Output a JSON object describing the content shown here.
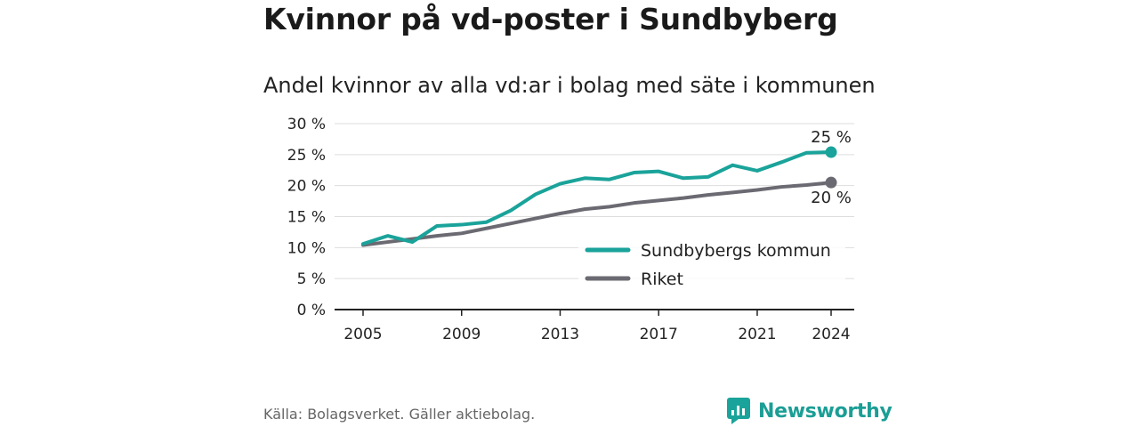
{
  "title": "Kvinnor på vd-poster i Sundbyberg",
  "subtitle": "Andel kvinnor av alla vd:ar i bolag med säte i kommunen",
  "source": "Källa: Bolagsverket. Gäller aktiebolag.",
  "brand": "Newsworthy",
  "colors": {
    "sundbyberg": "#1aa39a",
    "riket": "#6b6a72",
    "grid": "#dddddd",
    "axis": "#222222"
  },
  "chart_data": {
    "type": "line",
    "title": "Kvinnor på vd-poster i Sundbyberg",
    "subtitle": "Andel kvinnor av alla vd:ar i bolag med säte i kommunen",
    "x": [
      2005,
      2006,
      2007,
      2008,
      2009,
      2010,
      2011,
      2012,
      2013,
      2014,
      2015,
      2016,
      2017,
      2018,
      2019,
      2020,
      2021,
      2022,
      2023,
      2024
    ],
    "x_ticks": [
      2005,
      2009,
      2013,
      2017,
      2021,
      2024
    ],
    "x_tick_labels": [
      "2005",
      "2009",
      "2013",
      "2017",
      "2021",
      "2024"
    ],
    "y_ticks": [
      0,
      5,
      10,
      15,
      20,
      25,
      30
    ],
    "y_tick_labels": [
      "0 %",
      "5 %",
      "10 %",
      "15 %",
      "20 %",
      "25 %",
      "30 %"
    ],
    "ylim": [
      0,
      30
    ],
    "grid": true,
    "legend_position": "bottom-right",
    "series": [
      {
        "name": "Sundbybergs kommun",
        "color": "#1aa39a",
        "values": [
          10.6,
          11.9,
          10.9,
          13.5,
          13.7,
          14.1,
          16.0,
          18.6,
          20.3,
          21.2,
          21.0,
          22.1,
          22.3,
          21.2,
          21.4,
          23.3,
          22.4,
          23.8,
          25.3,
          25.4
        ],
        "end_label": "25 %"
      },
      {
        "name": "Riket",
        "color": "#6b6a72",
        "values": [
          10.4,
          10.9,
          11.4,
          11.9,
          12.3,
          13.1,
          13.9,
          14.7,
          15.5,
          16.2,
          16.6,
          17.2,
          17.6,
          18.0,
          18.5,
          18.9,
          19.3,
          19.8,
          20.1,
          20.5
        ],
        "end_label": "20 %"
      }
    ]
  }
}
